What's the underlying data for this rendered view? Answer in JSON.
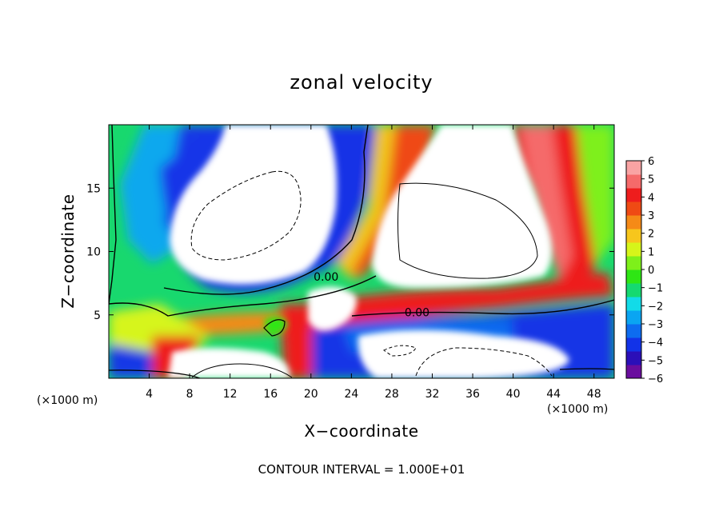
{
  "chart_data": {
    "type": "heatmap",
    "title": "zonal velocity",
    "xlabel": "X−coordinate",
    "ylabel": "Z−coordinate",
    "x_unit_left": "(×1000 m)",
    "x_unit_right": "(×1000 m)",
    "footer": "CONTOUR INTERVAL = 1.000E+01",
    "xlim": [
      0,
      50
    ],
    "ylim": [
      0,
      20
    ],
    "x_ticks": [
      4,
      8,
      12,
      16,
      20,
      24,
      28,
      32,
      36,
      40,
      44,
      48
    ],
    "y_ticks": [
      5,
      10,
      15
    ],
    "colorbar": {
      "ticks": [
        "6",
        "5",
        "4",
        "3",
        "2",
        "1",
        "0",
        "−1",
        "−2",
        "−3",
        "−4",
        "−5",
        "−6"
      ],
      "range": [
        -6,
        6
      ],
      "colors": [
        "#6a0d9e",
        "#2b0fb8",
        "#1233e8",
        "#0d6cf0",
        "#0aa5f2",
        "#12dbe8",
        "#15d970",
        "#2ee614",
        "#7ef01a",
        "#d6f51a",
        "#f7c61c",
        "#f58a17",
        "#ef4a14",
        "#ee1d1d",
        "#f56a6a",
        "#f9a3a3"
      ]
    },
    "contour_labels": [
      {
        "text": "0.00",
        "x": 21.5,
        "y": 8.0
      },
      {
        "text": "0.00",
        "x": 30.5,
        "y": 5.2
      }
    ],
    "grid": false
  }
}
